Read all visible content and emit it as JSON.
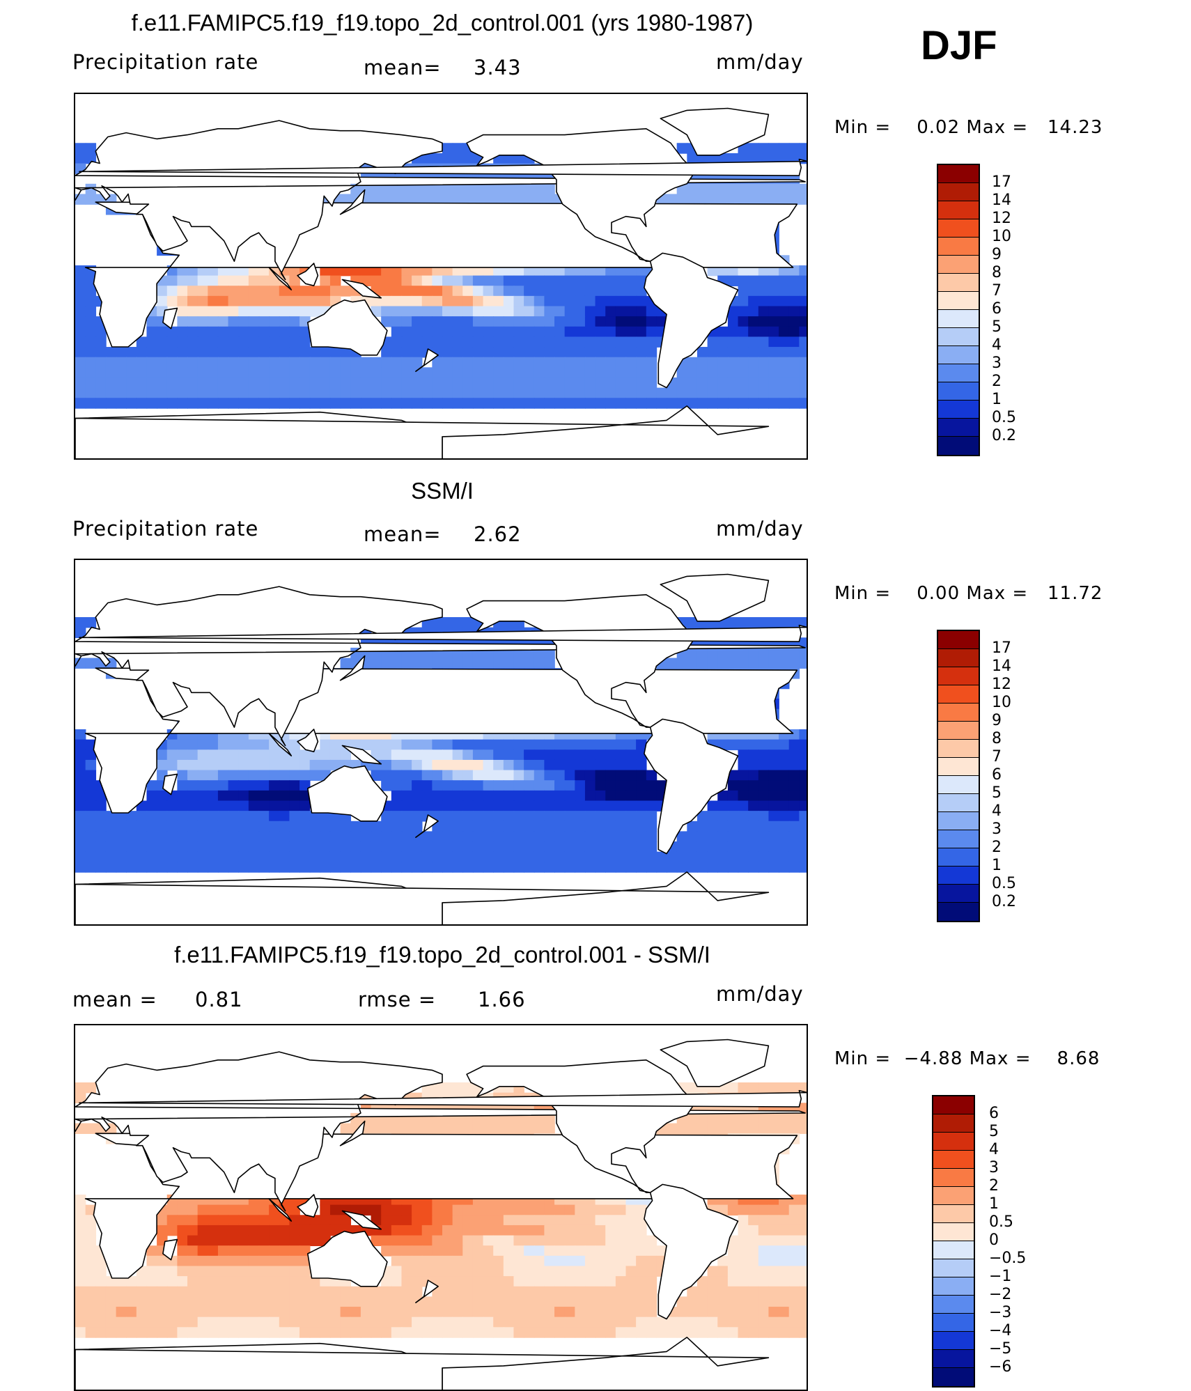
{
  "season": "DJF",
  "panels": [
    {
      "title": "f.e11.FAMIPC5.f19_f19.topo_2d_control.001 (yrs 1980-1987)",
      "left_label": "Precipitation rate",
      "mean_label": "mean=",
      "mean_value": "3.43",
      "units": "mm/day",
      "min_label": "Min =",
      "min_value": "0.02",
      "max_label": "Max =",
      "max_value": "14.23",
      "colorbar": {
        "labels": [
          "17",
          "14",
          "12",
          "10",
          "9",
          "8",
          "7",
          "6",
          "5",
          "4",
          "3",
          "2",
          "1",
          "0.5",
          "0.2"
        ],
        "colors": [
          "#8b0000",
          "#b01c05",
          "#d5300e",
          "#f0501e",
          "#f97a44",
          "#fba174",
          "#fdc9a8",
          "#fee6d4",
          "#dce8fb",
          "#b5cdf7",
          "#8aaef3",
          "#5b8aee",
          "#3466e6",
          "#1438d6",
          "#07159e",
          "#010c78"
        ]
      }
    },
    {
      "title": "SSM/I",
      "left_label": "Precipitation rate",
      "mean_label": "mean=",
      "mean_value": "2.62",
      "units": "mm/day",
      "min_label": "Min =",
      "min_value": "0.00",
      "max_label": "Max =",
      "max_value": "11.72",
      "colorbar": {
        "labels": [
          "17",
          "14",
          "12",
          "10",
          "9",
          "8",
          "7",
          "6",
          "5",
          "4",
          "3",
          "2",
          "1",
          "0.5",
          "0.2"
        ],
        "colors": [
          "#8b0000",
          "#b01c05",
          "#d5300e",
          "#f0501e",
          "#f97a44",
          "#fba174",
          "#fdc9a8",
          "#fee6d4",
          "#dce8fb",
          "#b5cdf7",
          "#8aaef3",
          "#5b8aee",
          "#3466e6",
          "#1438d6",
          "#07159e",
          "#010c78"
        ]
      }
    },
    {
      "title": "f.e11.FAMIPC5.f19_f19.topo_2d_control.001 - SSM/I",
      "left_label": "mean =",
      "left_value": "0.81",
      "mean_label": "rmse =",
      "mean_value": "1.66",
      "units": "mm/day",
      "min_label": "Min =",
      "min_value": "−4.88",
      "max_label": "Max =",
      "max_value": "8.68",
      "colorbar": {
        "labels": [
          "6",
          "5",
          "4",
          "3",
          "2",
          "1",
          "0.5",
          "0",
          "−0.5",
          "−1",
          "−2",
          "−3",
          "−4",
          "−5",
          "−6"
        ],
        "colors": [
          "#8b0000",
          "#b01c05",
          "#d5300e",
          "#f0501e",
          "#f97a44",
          "#fba174",
          "#fdc9a8",
          "#fee6d4",
          "#dce8fb",
          "#b5cdf7",
          "#8aaef3",
          "#5b8aee",
          "#3466e6",
          "#1438d6",
          "#07159e",
          "#010c78"
        ]
      }
    }
  ]
}
